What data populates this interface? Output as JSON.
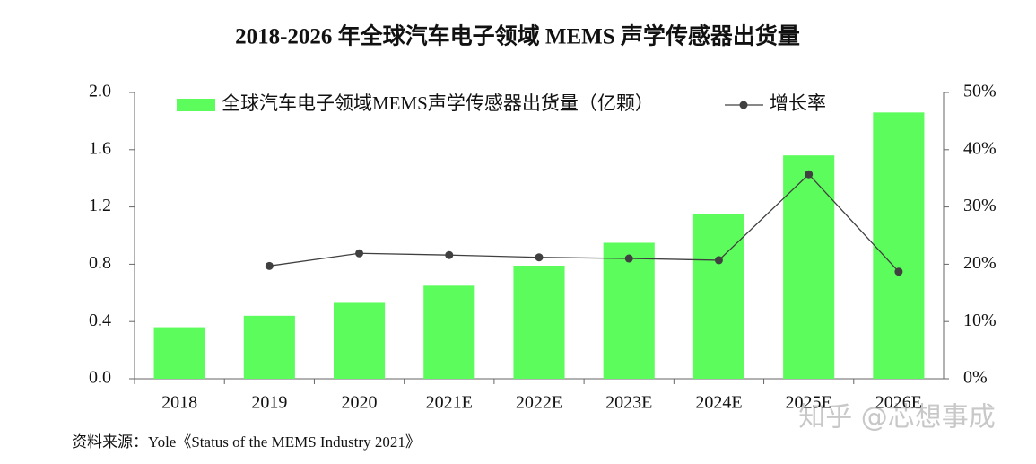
{
  "chart_data": {
    "type": "bar_line",
    "title": "2018-2026 年全球汽车电子领域 MEMS 声学传感器出货量",
    "categories": [
      "2018",
      "2019",
      "2020",
      "2021E",
      "2022E",
      "2023E",
      "2024E",
      "2025E",
      "2026E"
    ],
    "series": [
      {
        "name": "全球汽车电子领域MEMS声学传感器出货量（亿颗）",
        "color": "#5cfc5c",
        "type": "bar",
        "values": [
          0.36,
          0.44,
          0.53,
          0.65,
          0.79,
          0.95,
          1.15,
          1.56,
          1.86
        ]
      },
      {
        "name": "增长率",
        "color": "#404040",
        "type": "line",
        "axis": "y2",
        "values": [
          null,
          19.7,
          21.9,
          21.6,
          21.2,
          21.0,
          20.7,
          35.7,
          18.7
        ]
      }
    ],
    "ylim": [
      0,
      2.0
    ],
    "yticks": [
      {
        "value": 0,
        "label": "0.0"
      },
      0.4,
      0.8,
      1.2,
      1.6,
      {
        "value": 2.0,
        "label": "2.0"
      }
    ],
    "y2lim": [
      0,
      50
    ],
    "y2ticks": [
      {
        "value": 0,
        "label": "0%"
      },
      {
        "value": 10,
        "label": "10%"
      },
      {
        "value": 20,
        "label": "20%"
      },
      {
        "value": 30,
        "label": "30%"
      },
      {
        "value": 40,
        "label": "40%"
      },
      {
        "value": 50,
        "label": "50%"
      }
    ],
    "legend": "top",
    "source": "资料来源：Yole《Status of the MEMS Industry 2021》",
    "watermark": "知乎 @芯想事成"
  }
}
